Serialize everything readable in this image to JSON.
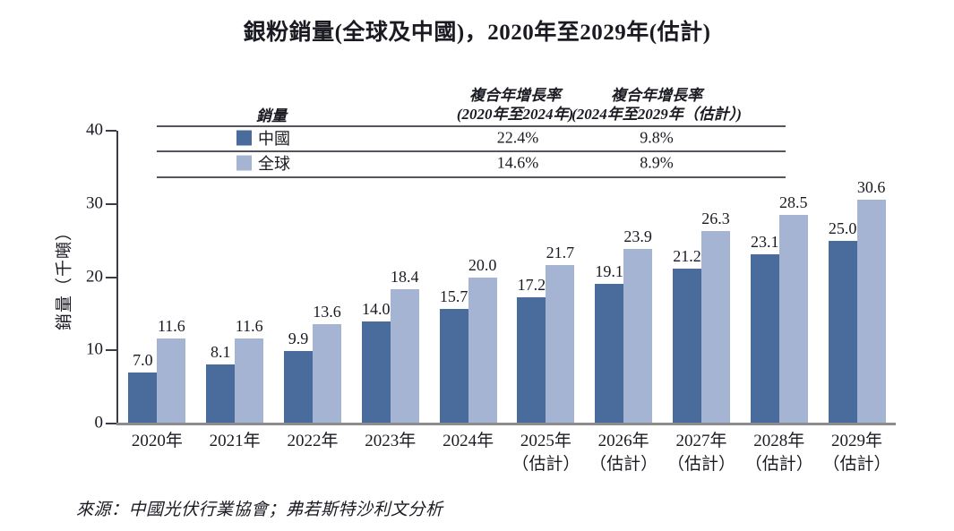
{
  "page": {
    "title": "銀粉銷量(全球及中國)，2020年至2029年(估計)",
    "source": "來源：中國光伏行業協會；弗若斯特沙利文分析"
  },
  "legend_table": {
    "sales_header": "銷量",
    "cagr1_line1": "複合年增長率",
    "cagr1_line2": "(2020年至2024年)",
    "cagr2_line1": "複合年增長率",
    "cagr2_line2": "(2024年至2029年（估計）)",
    "rows": [
      {
        "label": "中國",
        "color": "#4a6c9c",
        "cagr_2020_2024": "22.4%",
        "cagr_2024_2029_est": "9.8%"
      },
      {
        "label": "全球",
        "color": "#a6b4d3",
        "cagr_2020_2024": "14.6%",
        "cagr_2024_2029_est": "8.9%"
      }
    ]
  },
  "chart_data": {
    "type": "bar",
    "title": "銀粉銷量(全球及中國)，2020年至2029年(估計)",
    "ylabel": "銷量（千噸）",
    "ylim": [
      0,
      40
    ],
    "yticks": [
      0,
      10,
      20,
      30,
      40
    ],
    "grid": false,
    "legend_position": "top-table",
    "value_label_decimals": 1,
    "categories": [
      {
        "year": "2020年",
        "note": ""
      },
      {
        "year": "2021年",
        "note": ""
      },
      {
        "year": "2022年",
        "note": ""
      },
      {
        "year": "2023年",
        "note": ""
      },
      {
        "year": "2024年",
        "note": ""
      },
      {
        "year": "2025年",
        "note": "（估計）"
      },
      {
        "year": "2026年",
        "note": "（估計）"
      },
      {
        "year": "2027年",
        "note": "（估計）"
      },
      {
        "year": "2028年",
        "note": "（估計）"
      },
      {
        "year": "2029年",
        "note": "（估計）"
      }
    ],
    "series": [
      {
        "name": "中國",
        "color": "#4a6c9c",
        "values": [
          7.0,
          8.1,
          9.9,
          14.0,
          15.7,
          17.2,
          19.1,
          21.2,
          23.1,
          25.0
        ]
      },
      {
        "name": "全球",
        "color": "#a6b4d3",
        "values": [
          11.6,
          11.6,
          13.6,
          18.4,
          20.0,
          21.7,
          23.9,
          26.3,
          28.5,
          30.6
        ]
      }
    ]
  }
}
